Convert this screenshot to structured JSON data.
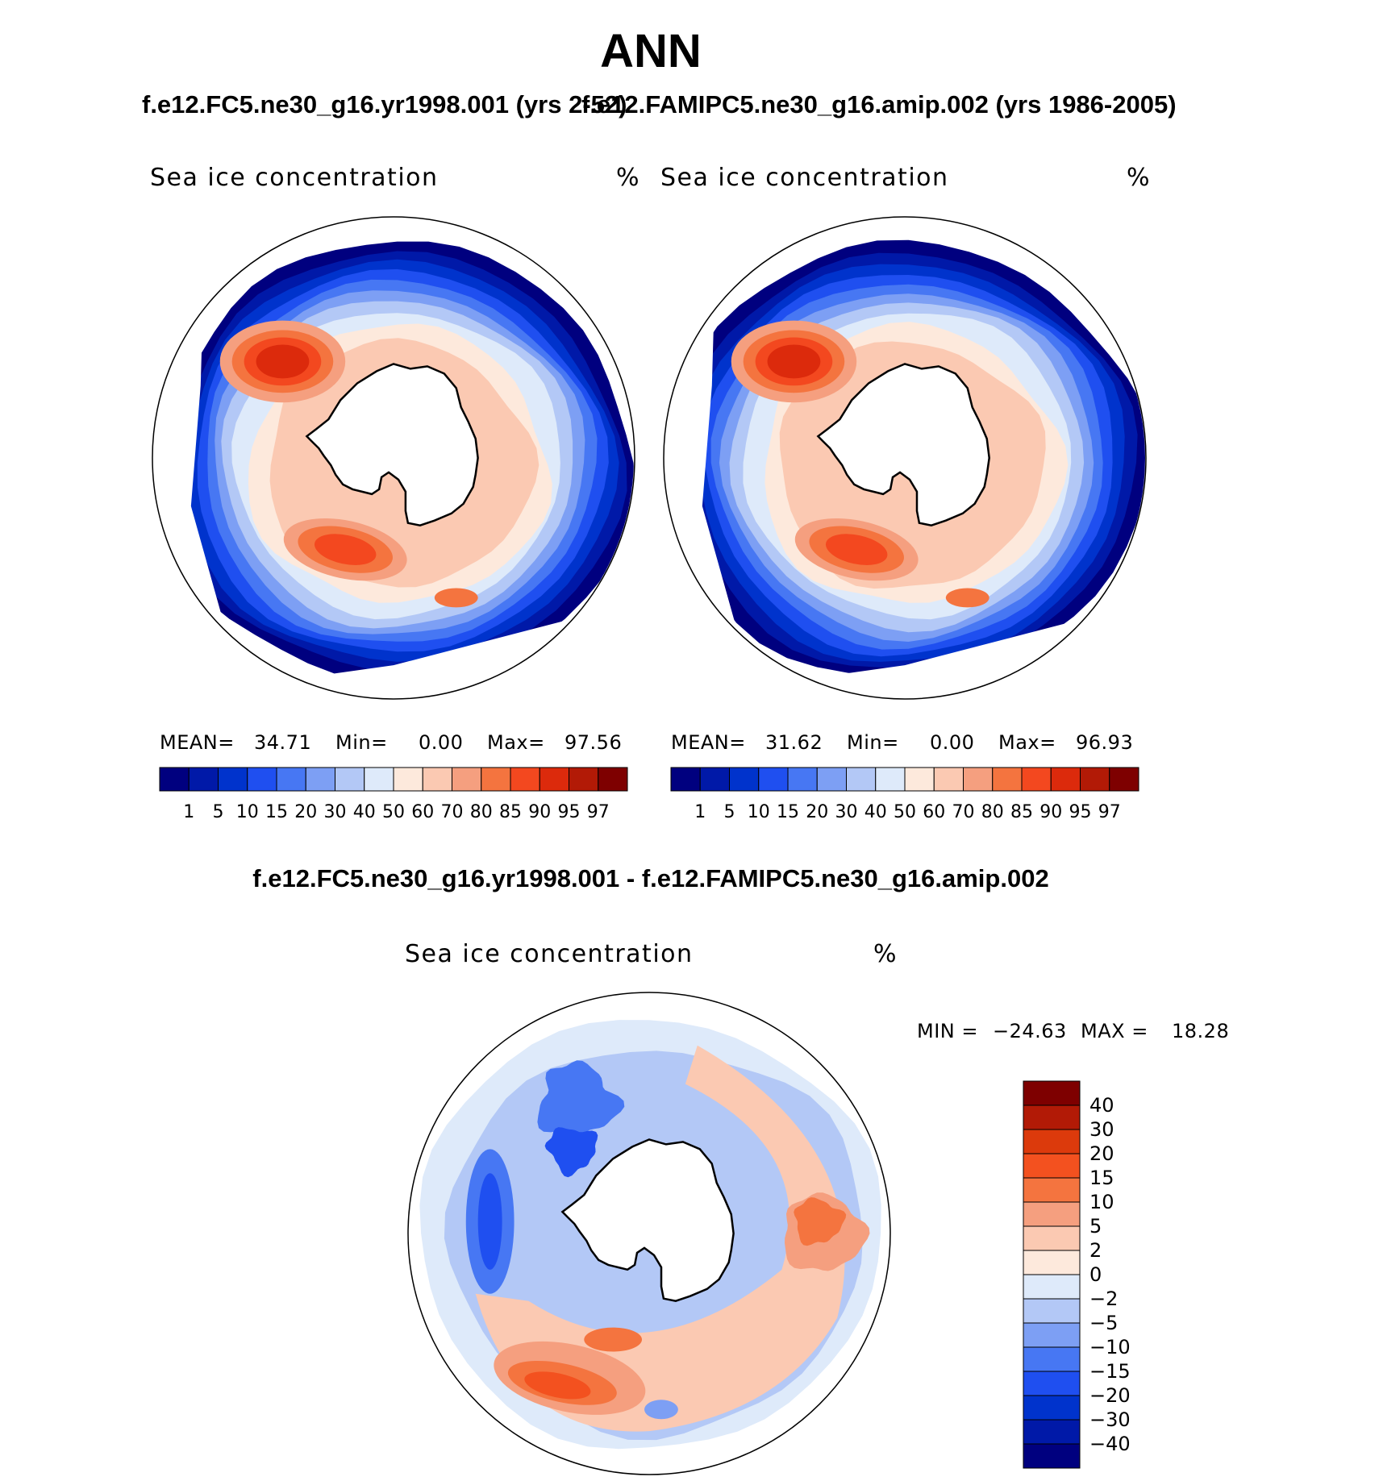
{
  "title": "ANN",
  "case1_title": "f.e12.FC5.ne30_g16.yr1998.001 (yrs 2-52)",
  "case2_title": "f.e12.FAMIPC5.ne30_g16.amip.002 (yrs 1986-2005)",
  "diff_title": "f.e12.FC5.ne30_g16.yr1998.001 - f.e12.FAMIPC5.ne30_g16.amip.002",
  "panels": [
    {
      "label": "Sea ice concentration",
      "units": "%",
      "mean_label": "MEAN=",
      "mean": "34.71",
      "min_label": "Min=",
      "min": "0.00",
      "max_label": "Max=",
      "max": "97.56"
    },
    {
      "label": "Sea ice concentration",
      "units": "%",
      "mean_label": "MEAN=",
      "mean": "31.62",
      "min_label": "Min=",
      "min": "0.00",
      "max_label": "Max=",
      "max": "96.93"
    }
  ],
  "diff_panel": {
    "label": "Sea ice concentration",
    "units": "%",
    "min_label": "MIN =",
    "min": "−24.63",
    "max_label": "MAX =",
    "max": "18.28"
  },
  "chart_data": [
    {
      "type": "heatmap",
      "projection": "south-polar-stereographic",
      "title": "f.e12.FC5.ne30_g16.yr1998.001 (yrs 2-52)",
      "variable": "Sea ice concentration",
      "units": "%",
      "mean": 34.71,
      "min": 0.0,
      "max": 97.56,
      "levels": [
        "1",
        "5",
        "10",
        "15",
        "20",
        "30",
        "40",
        "50",
        "60",
        "70",
        "80",
        "85",
        "90",
        "95",
        "97"
      ],
      "colors": [
        "#00007f",
        "#0019a8",
        "#0033cc",
        "#1f4ff0",
        "#4777f3",
        "#7d9ff4",
        "#b3c8f6",
        "#deeafa",
        "#fde9dc",
        "#fbc9b2",
        "#f59f7f",
        "#f4743f",
        "#f3481f",
        "#dc2a0c",
        "#b21a06",
        "#7e0000"
      ]
    },
    {
      "type": "heatmap",
      "projection": "south-polar-stereographic",
      "title": "f.e12.FAMIPC5.ne30_g16.amip.002 (yrs 1986-2005)",
      "variable": "Sea ice concentration",
      "units": "%",
      "mean": 31.62,
      "min": 0.0,
      "max": 96.93,
      "levels": [
        "1",
        "5",
        "10",
        "15",
        "20",
        "30",
        "40",
        "50",
        "60",
        "70",
        "80",
        "85",
        "90",
        "95",
        "97"
      ],
      "colors": [
        "#00007f",
        "#0019a8",
        "#0033cc",
        "#1f4ff0",
        "#4777f3",
        "#7d9ff4",
        "#b3c8f6",
        "#deeafa",
        "#fde9dc",
        "#fbc9b2",
        "#f59f7f",
        "#f4743f",
        "#f3481f",
        "#dc2a0c",
        "#b21a06",
        "#7e0000"
      ]
    },
    {
      "type": "heatmap",
      "projection": "south-polar-stereographic",
      "title": "f.e12.FC5.ne30_g16.yr1998.001 - f.e12.FAMIPC5.ne30_g16.amip.002",
      "variable": "Sea ice concentration",
      "units": "%",
      "min": -24.63,
      "max": 18.28,
      "levels": [
        "40",
        "30",
        "20",
        "15",
        "10",
        "5",
        "2",
        "0",
        "−2",
        "−5",
        "−10",
        "−15",
        "−20",
        "−30",
        "−40"
      ],
      "colors": [
        "#7e0000",
        "#b21a06",
        "#dc3a0c",
        "#f3511f",
        "#f4743f",
        "#f59f7f",
        "#fbc9b2",
        "#fde9dc",
        "#deeafa",
        "#b3c8f6",
        "#7d9ff4",
        "#4777f3",
        "#1f4ff0",
        "#0033cc",
        "#0019a8",
        "#00007f"
      ]
    }
  ]
}
